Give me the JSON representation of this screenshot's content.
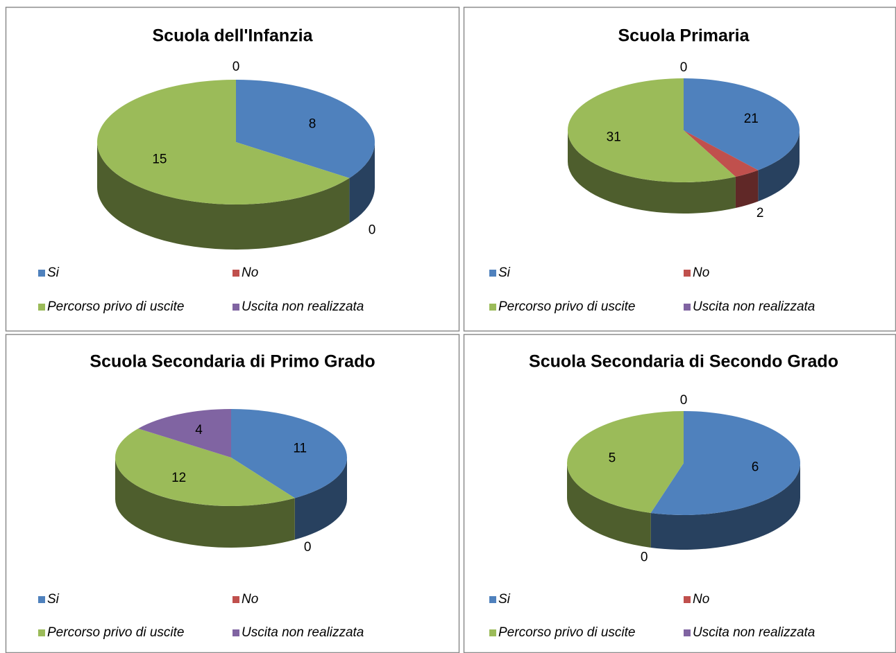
{
  "chart_data": [
    {
      "type": "pie",
      "title": "Scuola dell'Infanzia",
      "categories": [
        "Si",
        "No",
        "Percorso privo di uscite",
        "Uscita non realizzata"
      ],
      "values": [
        8,
        0,
        15,
        0
      ],
      "colors": [
        "#4f81bd",
        "#c0504d",
        "#9bbb59",
        "#8064a2"
      ]
    },
    {
      "type": "pie",
      "title": "Scuola Primaria",
      "categories": [
        "Si",
        "No",
        "Percorso privo di uscite",
        "Uscita non realizzata"
      ],
      "values": [
        21,
        2,
        31,
        0
      ],
      "colors": [
        "#4f81bd",
        "#c0504d",
        "#9bbb59",
        "#8064a2"
      ]
    },
    {
      "type": "pie",
      "title": "Scuola Secondaria di Primo Grado",
      "categories": [
        "Si",
        "No",
        "Percorso privo di uscite",
        "Uscita non realizzata"
      ],
      "values": [
        11,
        0,
        12,
        4
      ],
      "colors": [
        "#4f81bd",
        "#c0504d",
        "#9bbb59",
        "#8064a2"
      ]
    },
    {
      "type": "pie",
      "title": "Scuola Secondaria di Secondo Grado",
      "categories": [
        "Si",
        "No",
        "Percorso privo di uscite",
        "Uscita non realizzata"
      ],
      "values": [
        6,
        0,
        5,
        0
      ],
      "colors": [
        "#4f81bd",
        "#c0504d",
        "#9bbb59",
        "#8064a2"
      ]
    }
  ]
}
